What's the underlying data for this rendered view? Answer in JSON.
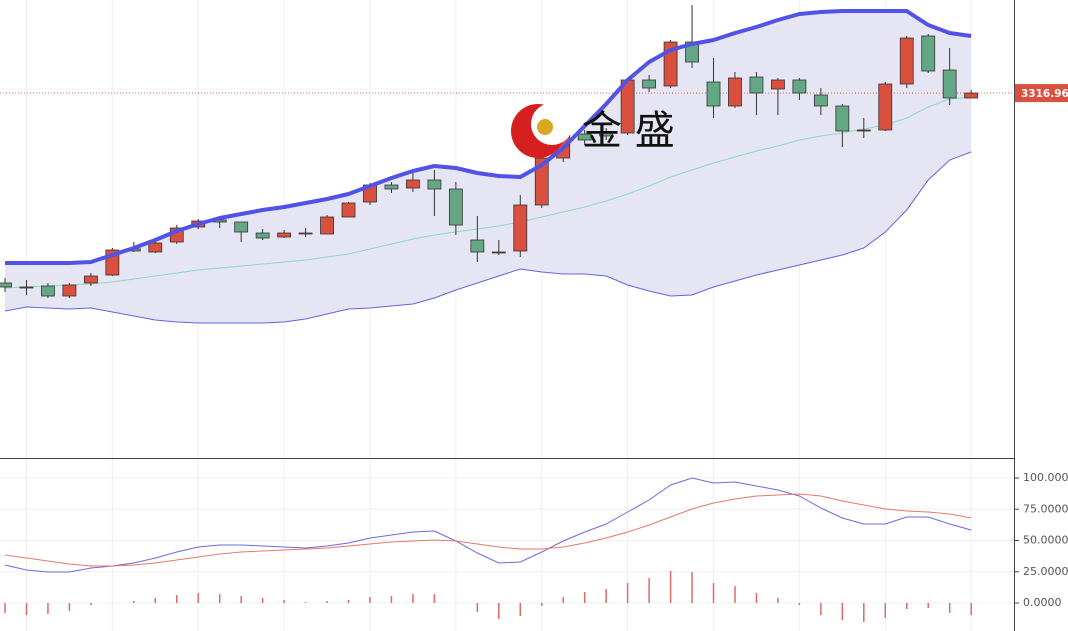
{
  "chart_data": [
    {
      "type": "candlestick",
      "categories": [
        null,
        null,
        null,
        null,
        null,
        null,
        null,
        null,
        null,
        null,
        null,
        null,
        null,
        null,
        null,
        null,
        null,
        null,
        null,
        null,
        null,
        null,
        null,
        null,
        null,
        null,
        null,
        null,
        null,
        null,
        null,
        null,
        null,
        null,
        null,
        null,
        null,
        null,
        null,
        null,
        null,
        null,
        null,
        null,
        null,
        null
      ],
      "open": [
        3222,
        3220,
        3220.5,
        3215.5,
        3222,
        3226,
        3239,
        3237.5,
        3242.5,
        3250,
        3253.5,
        3252.5,
        3247,
        3245,
        3247,
        3246.5,
        3255,
        3262.5,
        3271,
        3269.5,
        3273.5,
        3269,
        3243.5,
        3237.5,
        3238,
        3261,
        3284.5,
        3296.5,
        3297.5,
        3297,
        3323.5,
        3320.5,
        3342.5,
        3322.5,
        3310.5,
        3325,
        3319,
        3323.5,
        3316,
        3310.5,
        3298.5,
        3298.5,
        3321.5,
        3345.5,
        3328.5,
        3314.5
      ],
      "high": [
        3224.5,
        3223.5,
        3222,
        3222,
        3227,
        3239.5,
        3242.5,
        3243.5,
        3251,
        3254,
        3255.5,
        3252.5,
        3249,
        3248.5,
        3249.5,
        3256,
        3262.5,
        3272,
        3272.5,
        3277.5,
        3278.5,
        3272.5,
        3255.5,
        3243.5,
        3266,
        3286,
        3301,
        3298.5,
        3299.5,
        3324.5,
        3326,
        3343.5,
        3361,
        3334.5,
        3327.5,
        3327.5,
        3324.5,
        3324.5,
        3319.5,
        3311.5,
        3304.5,
        3322.5,
        3345.5,
        3346.5,
        3339.5,
        3318.5
      ],
      "low": [
        3217.5,
        3216,
        3214.5,
        3214.5,
        3220.5,
        3225.5,
        3237.5,
        3237,
        3241.5,
        3249,
        3249.5,
        3242.5,
        3243.5,
        3244.5,
        3245,
        3246.5,
        3255,
        3261,
        3267,
        3267.5,
        3255.5,
        3246,
        3232.5,
        3236,
        3235,
        3259.5,
        3282.5,
        3291,
        3293.5,
        3296,
        3317.5,
        3319.5,
        3329.5,
        3304.5,
        3309.5,
        3306,
        3306,
        3313.5,
        3306,
        3290,
        3294.5,
        3298,
        3319.5,
        3327,
        3311,
        3314.5
      ],
      "close": [
        3220,
        3220,
        3215.5,
        3221,
        3225.5,
        3238.5,
        3238,
        3242,
        3249.5,
        3253,
        3252.5,
        3247.5,
        3244.5,
        3247,
        3247,
        3255,
        3262,
        3271,
        3269,
        3273.5,
        3269,
        3251,
        3237.5,
        3237.5,
        3261,
        3284.5,
        3297.5,
        3293.5,
        3295.5,
        3323.5,
        3319.5,
        3342.5,
        3332.5,
        3310.5,
        3324.5,
        3317,
        3323.5,
        3317,
        3310.5,
        3298,
        3298.5,
        3321.5,
        3344.5,
        3328,
        3314.5,
        3316.96
      ],
      "up_color": "#d9503f",
      "down_color": "#63a784",
      "band_fill": "#e5e5f3",
      "series": [
        {
          "color": "#5252e6",
          "line_width": 4,
          "values": [
            3232,
            3232,
            3232,
            3232,
            3232.5,
            3236,
            3239.5,
            3243.5,
            3248,
            3251.5,
            3254.5,
            3256.5,
            3258.5,
            3260,
            3262,
            3264,
            3266.5,
            3270.5,
            3274.5,
            3278,
            3280.5,
            3279.5,
            3277,
            3275.5,
            3275,
            3281,
            3289.5,
            3300.5,
            3311.5,
            3323.5,
            3332.5,
            3338.5,
            3341.5,
            3343.5,
            3347,
            3350,
            3353.5,
            3356.5,
            3357.5,
            3358,
            3358,
            3358,
            3358,
            3351,
            3347,
            3345.5
          ]
        },
        {
          "color": "#8fd8c6",
          "line_width": 1,
          "values": [
            3219.5,
            3220,
            3220.5,
            3221,
            3221.5,
            3222.5,
            3224,
            3225.5,
            3227,
            3228.5,
            3229.5,
            3230.5,
            3231.5,
            3232.5,
            3233.5,
            3235,
            3236.5,
            3239,
            3241.5,
            3244,
            3246,
            3247.5,
            3249,
            3250.5,
            3252.5,
            3255,
            3257.5,
            3260,
            3263,
            3266.5,
            3270.5,
            3275,
            3278.5,
            3282,
            3285,
            3288,
            3290.5,
            3293.5,
            3295.5,
            3297,
            3299,
            3301,
            3304.5,
            3310,
            3314,
            3315
          ]
        },
        {
          "color": "#6464e0",
          "line_width": 1,
          "values": [
            3208,
            3210,
            3209.5,
            3209,
            3209.5,
            3207.5,
            3205.5,
            3203.5,
            3202.5,
            3202,
            3202,
            3202,
            3202,
            3202.5,
            3204,
            3206.5,
            3209,
            3209.5,
            3210.5,
            3211.5,
            3214.5,
            3218.5,
            3222,
            3225.5,
            3229,
            3227.5,
            3226.5,
            3226.5,
            3225.5,
            3221,
            3218,
            3215.5,
            3216,
            3220,
            3223,
            3226,
            3228.5,
            3231,
            3233.5,
            3236,
            3239.5,
            3247.5,
            3258.5,
            3273.5,
            3283.5,
            3287.5
          ]
        }
      ],
      "last_price": 3316.96,
      "last_price_color": "#d9503f",
      "ylim": [
        3134.5,
        3363.5
      ],
      "watermark": "金 盛"
    },
    {
      "type": "line",
      "categories": [
        null,
        null,
        null,
        null,
        null,
        null,
        null,
        null,
        null,
        null,
        null,
        null,
        null,
        null,
        null,
        null,
        null,
        null,
        null,
        null,
        null,
        null,
        null,
        null,
        null,
        null,
        null,
        null,
        null,
        null,
        null,
        null,
        null,
        null,
        null,
        null,
        null,
        null,
        null,
        null,
        null,
        null,
        null,
        null,
        null,
        null
      ],
      "series": [
        {
          "color": "#6b6be0",
          "values": [
            30.4,
            26.4,
            24.8,
            24.8,
            28,
            29.6,
            32,
            36,
            40.8,
            44.8,
            46.4,
            46.4,
            45.6,
            44.8,
            44,
            45.6,
            48,
            52,
            54.4,
            56.8,
            57.6,
            49.6,
            40,
            32,
            32.8,
            40.8,
            49.6,
            56.8,
            63.2,
            72.8,
            82.4,
            94.4,
            100,
            96,
            96.8,
            93.6,
            90.4,
            85.6,
            76,
            68,
            63.2,
            63.2,
            68.8,
            68.8,
            63.2,
            58.4
          ]
        },
        {
          "color": "#e5796a",
          "values": [
            38.4,
            36,
            33.6,
            31.2,
            29.6,
            29.6,
            30.4,
            32,
            34.4,
            36.8,
            39.2,
            40.8,
            41.6,
            42.4,
            43.2,
            44,
            45.6,
            47.2,
            48.8,
            49.6,
            50.4,
            49.6,
            47.2,
            44.8,
            43.2,
            43.2,
            44.8,
            48,
            52,
            56.8,
            62.4,
            68.8,
            75.2,
            80,
            83.2,
            85.6,
            86.4,
            87.2,
            85.6,
            81.6,
            78.4,
            75.2,
            73.6,
            72.8,
            71.2,
            68
          ]
        }
      ],
      "histogram": [
        -8,
        -9.6,
        -8.8,
        -6.4,
        -1.6,
        0,
        1.6,
        4,
        6.4,
        8,
        7.2,
        5.6,
        4,
        2.4,
        0.8,
        1.6,
        2.4,
        4.8,
        5.6,
        7.2,
        7.2,
        0,
        -7.2,
        -12.8,
        -10.4,
        -2.4,
        4.8,
        8.8,
        11.2,
        16,
        20,
        25.6,
        24.8,
        16,
        13.6,
        8,
        4,
        -1.6,
        -9.6,
        -13.6,
        -15.2,
        -12,
        -4.8,
        -4,
        -8,
        -9.6
      ],
      "histogram_color": "#e06a66",
      "ylim": [
        -22.4,
        116
      ],
      "yticks": [
        {
          "value": 100,
          "label": "100.0000"
        },
        {
          "value": 75,
          "label": "75.0000"
        },
        {
          "value": 50,
          "label": "50.0000"
        },
        {
          "value": 25,
          "label": "25.0000"
        },
        {
          "value": 0,
          "label": "0.0000"
        }
      ],
      "grid": true
    }
  ]
}
